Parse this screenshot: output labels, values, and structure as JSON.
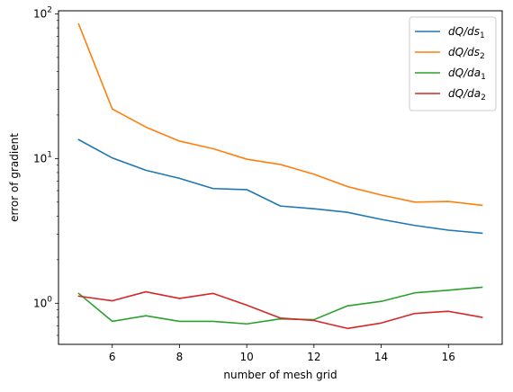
{
  "chart_data": {
    "type": "line",
    "xlabel": "number of mesh grid",
    "ylabel": "error of gradient",
    "yscale": "log",
    "xlim": [
      4.4,
      17.6
    ],
    "ylim": [
      0.52,
      105
    ],
    "x_ticks": [
      6,
      8,
      10,
      12,
      14,
      16
    ],
    "y_ticks": [
      {
        "value": 1,
        "base": "10",
        "exp": "0"
      },
      {
        "value": 10,
        "base": "10",
        "exp": "1"
      },
      {
        "value": 100,
        "base": "10",
        "exp": "2"
      }
    ],
    "grid": false,
    "legend_position": "top-right",
    "x": [
      5,
      6,
      7,
      8,
      9,
      10,
      11,
      12,
      13,
      14,
      15,
      16,
      17
    ],
    "series": [
      {
        "name_main": "dQ/ds",
        "name_sub": "1",
        "color": "#1f77b4",
        "values": [
          13.5,
          10.1,
          8.3,
          7.3,
          6.2,
          6.1,
          4.7,
          4.5,
          4.25,
          3.8,
          3.45,
          3.2,
          3.05
        ]
      },
      {
        "name_main": "dQ/ds",
        "name_sub": "2",
        "color": "#ff7f0e",
        "values": [
          85,
          22,
          16.5,
          13.2,
          11.7,
          9.9,
          9.1,
          7.8,
          6.4,
          5.6,
          5.0,
          5.05,
          4.75
        ]
      },
      {
        "name_main": "dQ/da",
        "name_sub": "1",
        "color": "#2ca02c",
        "values": [
          1.17,
          0.75,
          0.82,
          0.75,
          0.75,
          0.72,
          0.78,
          0.77,
          0.96,
          1.03,
          1.18,
          1.23,
          1.29
        ]
      },
      {
        "name_main": "dQ/da",
        "name_sub": "2",
        "color": "#d62728",
        "values": [
          1.12,
          1.04,
          1.2,
          1.08,
          1.17,
          0.97,
          0.79,
          0.76,
          0.67,
          0.73,
          0.85,
          0.88,
          0.8
        ]
      }
    ]
  }
}
